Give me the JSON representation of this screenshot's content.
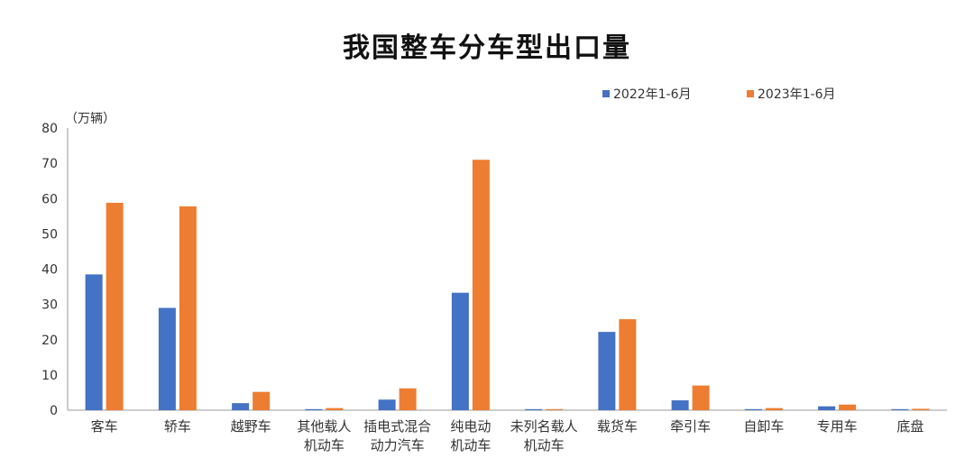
{
  "chart_data": {
    "type": "bar",
    "title": "我国整车分车型出口量",
    "unit_label": "（万辆）",
    "ylim": [
      0,
      80
    ],
    "yticks": [
      0,
      10,
      20,
      30,
      40,
      50,
      60,
      70,
      80
    ],
    "categories": [
      [
        "客车"
      ],
      [
        "轿车"
      ],
      [
        "越野车"
      ],
      [
        "其他载人",
        "机动车"
      ],
      [
        "插电式混合",
        "动力汽车"
      ],
      [
        "纯电动",
        "机动车"
      ],
      [
        "未列名载人",
        "机动车"
      ],
      [
        "载货车"
      ],
      [
        "牵引车"
      ],
      [
        "自卸车"
      ],
      [
        "专用车"
      ],
      [
        "底盘"
      ]
    ],
    "series": [
      {
        "name": "2022年1-6月",
        "color": "#4472C4",
        "values": [
          38.5,
          29.0,
          2.0,
          0.3,
          3.0,
          33.3,
          0.3,
          22.2,
          2.8,
          0.3,
          1.1,
          0.3
        ]
      },
      {
        "name": "2023年1-6月",
        "color": "#ED7D31",
        "values": [
          58.8,
          57.8,
          5.2,
          0.6,
          6.2,
          71.0,
          0.3,
          25.8,
          7.0,
          0.6,
          1.6,
          0.4
        ]
      }
    ],
    "grid": false,
    "legend_position": "top-right"
  }
}
